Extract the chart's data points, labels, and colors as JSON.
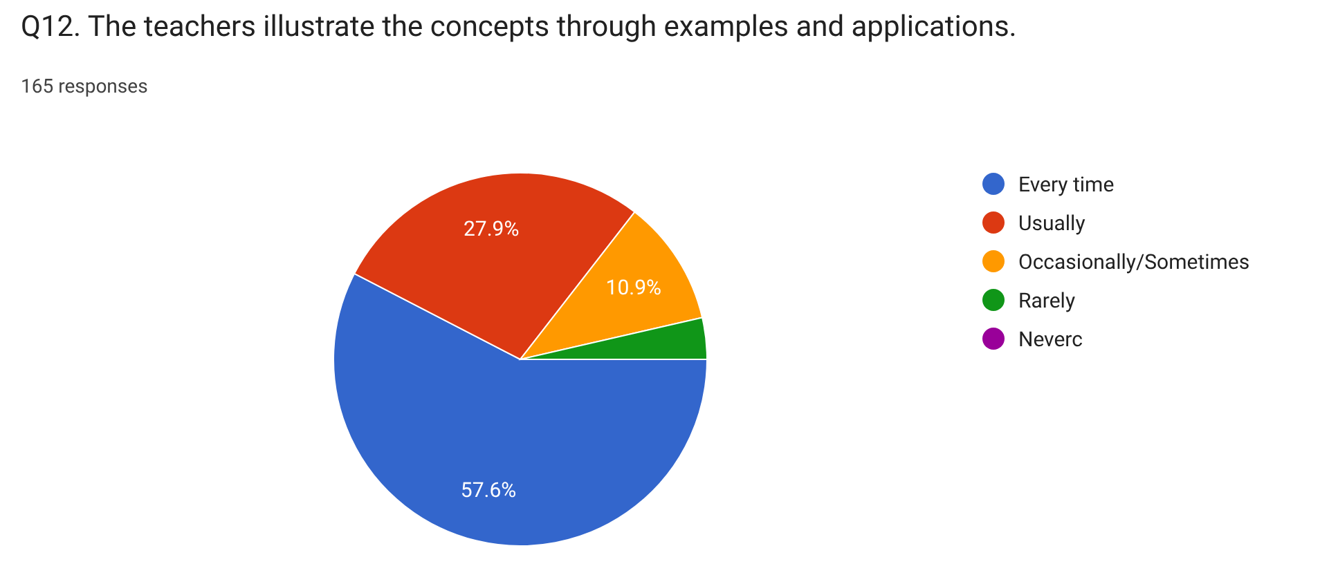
{
  "chart_data": {
    "type": "pie",
    "title": "Q12. The teachers illustrate the concepts through examples and applications.",
    "subtitle": "165 responses",
    "categories": [
      "Every time",
      "Usually",
      "Occasionally/Sometimes",
      "Rarely",
      "Neverc"
    ],
    "values": [
      57.6,
      27.9,
      10.9,
      3.6,
      0
    ],
    "colors": [
      "#3366cc",
      "#dc3912",
      "#ff9900",
      "#109618",
      "#990099"
    ],
    "value_labels": [
      "57.6%",
      "27.9%",
      "10.9%",
      null,
      null
    ],
    "legend": "right"
  }
}
